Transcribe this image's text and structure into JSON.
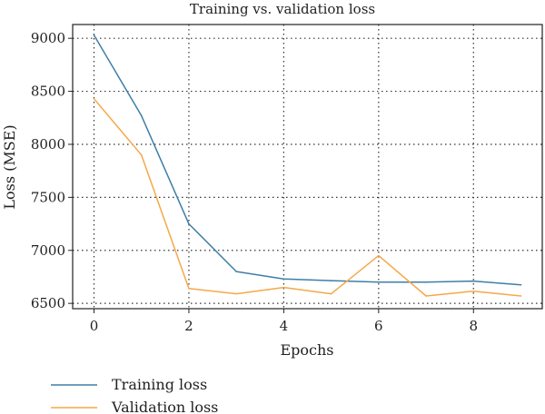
{
  "chart_data": {
    "type": "line",
    "title": "Training vs. validation loss",
    "xlabel": "Epochs",
    "ylabel": "Loss (MSE)",
    "x": [
      0,
      1,
      2,
      3,
      4,
      5,
      6,
      7,
      8,
      9
    ],
    "xlim": [
      -0.45,
      9.45
    ],
    "ylim": [
      6450,
      9130
    ],
    "xticks": [
      0,
      2,
      4,
      6,
      8
    ],
    "yticks": [
      6500,
      7000,
      7500,
      8000,
      8500,
      9000
    ],
    "grid": true,
    "legend_position": "below",
    "series": [
      {
        "name": "Training loss",
        "color": "#3f7ea6",
        "values": [
          9030,
          8270,
          7250,
          6800,
          6730,
          6715,
          6700,
          6700,
          6710,
          6675
        ]
      },
      {
        "name": "Validation loss",
        "color": "#f5a84a",
        "values": [
          8430,
          7900,
          6640,
          6590,
          6650,
          6590,
          6950,
          6570,
          6615,
          6570
        ]
      }
    ]
  }
}
